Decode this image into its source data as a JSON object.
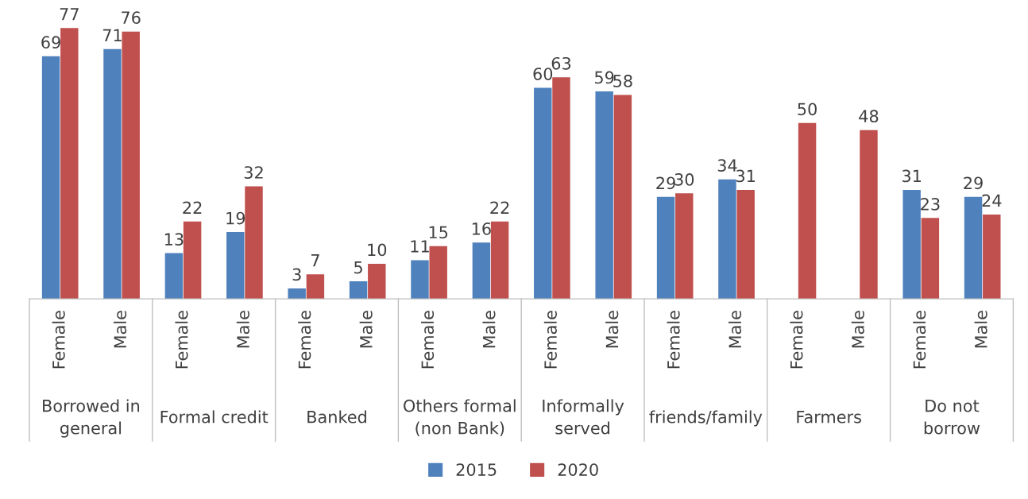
{
  "chart_data": {
    "type": "bar",
    "categories": [
      "Female",
      "Male",
      "Female",
      "Male",
      "Female",
      "Male",
      "Female",
      "Male",
      "Female",
      "Male",
      "Female",
      "Male",
      "Female",
      "Male",
      "Female",
      "Male"
    ],
    "annotations": [
      "Borrowed in\ngeneral",
      "Formal credit",
      "Banked",
      "Others formal\n(non Bank)",
      "Informally\nserved",
      "friends/family",
      "Farmers",
      "Do not\nborrow"
    ],
    "series": [
      {
        "name": "2015",
        "color": "#4f81bd",
        "values": [
          69,
          71,
          13,
          19,
          3,
          5,
          11,
          16,
          60,
          59,
          29,
          34,
          null,
          null,
          31,
          29
        ]
      },
      {
        "name": "2020",
        "color": "#c0504d",
        "values": [
          77,
          76,
          22,
          32,
          7,
          10,
          15,
          22,
          63,
          58,
          30,
          31,
          50,
          48,
          23,
          24
        ]
      }
    ],
    "data_labels": true,
    "grid": false,
    "legend": "bottom"
  }
}
